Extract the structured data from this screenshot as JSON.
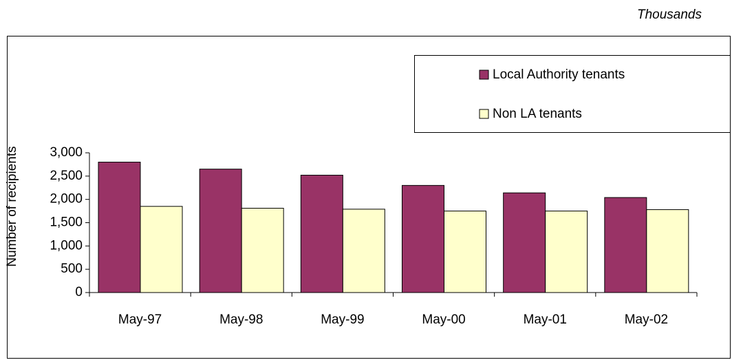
{
  "chart_data": {
    "type": "bar",
    "unit_note": "Thousands",
    "y_label": "Number of recipients",
    "categories": [
      "May-97",
      "May-98",
      "May-99",
      "May-00",
      "May-01",
      "May-02"
    ],
    "series": [
      {
        "name": "Local Authority tenants",
        "color": "#993366",
        "values": [
          2800,
          2650,
          2520,
          2300,
          2140,
          2040
        ]
      },
      {
        "name": "Non LA tenants",
        "color": "#ffffcc",
        "values": [
          1850,
          1810,
          1790,
          1750,
          1750,
          1780
        ]
      }
    ],
    "ylim": [
      0,
      3000
    ],
    "yticks": [
      0,
      500,
      {
        "value": 1000,
        "label": "1,000"
      },
      {
        "value": 1500,
        "label": "1,500"
      },
      {
        "value": 2000,
        "label": "2,000"
      },
      {
        "value": 2500,
        "label": "2,500"
      },
      {
        "value": 3000,
        "label": "3,000"
      }
    ],
    "legend": "top-right"
  }
}
